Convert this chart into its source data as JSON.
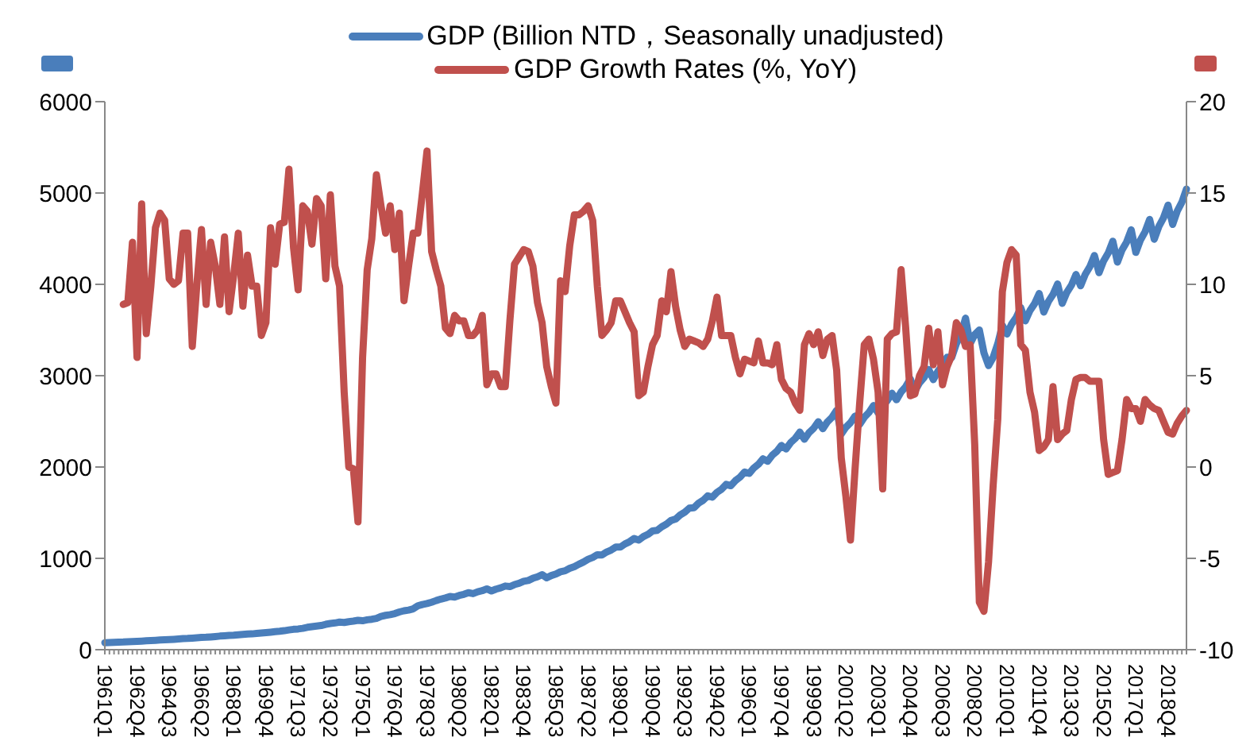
{
  "chart_data": {
    "type": "line",
    "categories": [
      "1961Q1",
      null,
      null,
      null,
      null,
      null,
      null,
      "1962Q4",
      null,
      null,
      null,
      null,
      null,
      null,
      "1964Q3",
      null,
      null,
      null,
      null,
      null,
      null,
      "1966Q2",
      null,
      null,
      null,
      null,
      null,
      null,
      "1968Q1",
      null,
      null,
      null,
      null,
      null,
      null,
      "1969Q4",
      null,
      null,
      null,
      null,
      null,
      null,
      "1971Q3",
      null,
      null,
      null,
      null,
      null,
      null,
      "1973Q2",
      null,
      null,
      null,
      null,
      null,
      null,
      "1975Q1",
      null,
      null,
      null,
      null,
      null,
      null,
      "1976Q4",
      null,
      null,
      null,
      null,
      null,
      null,
      "1978Q3",
      null,
      null,
      null,
      null,
      null,
      null,
      "1980Q2",
      null,
      null,
      null,
      null,
      null,
      null,
      "1982Q1",
      null,
      null,
      null,
      null,
      null,
      null,
      "1983Q4",
      null,
      null,
      null,
      null,
      null,
      null,
      "1985Q3",
      null,
      null,
      null,
      null,
      null,
      null,
      "1987Q2",
      null,
      null,
      null,
      null,
      null,
      null,
      "1989Q1",
      null,
      null,
      null,
      null,
      null,
      null,
      "1990Q4",
      null,
      null,
      null,
      null,
      null,
      null,
      "1992Q3",
      null,
      null,
      null,
      null,
      null,
      null,
      "1994Q2",
      null,
      null,
      null,
      null,
      null,
      null,
      "1996Q1",
      null,
      null,
      null,
      null,
      null,
      null,
      "1997Q4",
      null,
      null,
      null,
      null,
      null,
      null,
      "1999Q3",
      null,
      null,
      null,
      null,
      null,
      null,
      "2001Q2",
      null,
      null,
      null,
      null,
      null,
      null,
      "2003Q1",
      null,
      null,
      null,
      null,
      null,
      null,
      "2004Q4",
      null,
      null,
      null,
      null,
      null,
      null,
      "2006Q3",
      null,
      null,
      null,
      null,
      null,
      null,
      "2008Q2",
      null,
      null,
      null,
      null,
      null,
      null,
      "2010Q1",
      null,
      null,
      null,
      null,
      null,
      null,
      "2011Q4",
      null,
      null,
      null,
      null,
      null,
      null,
      "2013Q3",
      null,
      null,
      null,
      null,
      null,
      null,
      "2015Q2",
      null,
      null,
      null,
      null,
      null,
      null,
      "2017Q1",
      null,
      null,
      null,
      null,
      null,
      null,
      "2018Q4",
      null,
      null,
      null,
      null
    ],
    "series": [
      {
        "name": "GDP (Billion NTD，Seasonally unadjusted)",
        "color": "#4a7ebb",
        "values": [
          77,
          79,
          81,
          83,
          84,
          87,
          89,
          92,
          94,
          97,
          99,
          102,
          106,
          109,
          111,
          114,
          117,
          121,
          123,
          127,
          130,
          134,
          136,
          140,
          144,
          149,
          152,
          156,
          158,
          163,
          167,
          172,
          173,
          178,
          182,
          187,
          192,
          198,
          202,
          208,
          216,
          223,
          227,
          234,
          245,
          252,
          258,
          265,
          278,
          287,
          293,
          302,
          298,
          307,
          313,
          322,
          317,
          327,
          333,
          343,
          365,
          376,
          384,
          395,
          413,
          426,
          434,
          447,
          480,
          495,
          505,
          520,
          538,
          554,
          566,
          582,
          576,
          594,
          606,
          624,
          614,
          634,
          646,
          666,
          643,
          663,
          677,
          697,
          691,
          713,
          727,
          749,
          758,
          782,
          798,
          822,
          787,
          812,
          828,
          853,
          864,
          891,
          909,
          936,
          960,
          990,
          1010,
          1040,
          1037,
          1069,
          1091,
          1123,
          1123,
          1158,
          1182,
          1217,
          1200,
          1238,
          1263,
          1300,
          1306,
          1346,
          1374,
          1414,
          1430,
          1475,
          1505,
          1550,
          1555,
          1604,
          1636,
          1685,
          1670,
          1723,
          1757,
          1810,
          1795,
          1851,
          1889,
          1945,
          1930,
          1990,
          2030,
          2090,
          2064,
          2129,
          2172,
          2236,
          2198,
          2267,
          2313,
          2382,
          2304,
          2376,
          2424,
          2496,
          2419,
          2495,
          2545,
          2621,
          2362,
          2435,
          2485,
          2558,
          2467,
          2544,
          2596,
          2673,
          2592,
          2673,
          2727,
          2808,
          2736,
          2822,
          2879,
          2964,
          2832,
          2921,
          2980,
          3068,
          2957,
          3049,
          3111,
          3203,
          3200,
          3350,
          3450,
          3630,
          3350,
          3450,
          3500,
          3250,
          3110,
          3200,
          3350,
          3550,
          3456,
          3564,
          3636,
          3744,
          3600,
          3713,
          3788,
          3900,
          3696,
          3812,
          3889,
          4004,
          3792,
          3911,
          3990,
          4108,
          3984,
          4109,
          4192,
          4316,
          4128,
          4257,
          4343,
          4472,
          4243,
          4376,
          4464,
          4597,
          4349,
          4485,
          4575,
          4711,
          4493,
          4633,
          4727,
          4867,
          4656,
          4802,
          4899,
          5044
        ]
      },
      {
        "name": "GDP Growth Rates (%, YoY)",
        "color": "#c0504d",
        "axis": "y2",
        "values": [
          null,
          null,
          null,
          null,
          8.9,
          9.0,
          12.3,
          6.0,
          14.4,
          7.3,
          9.9,
          13.1,
          13.9,
          13.5,
          10.3,
          10.0,
          10.2,
          12.8,
          12.8,
          6.6,
          10.0,
          13.0,
          8.9,
          12.3,
          11.0,
          8.9,
          12.6,
          8.5,
          10.5,
          12.8,
          8.8,
          11.6,
          9.9,
          9.9,
          7.2,
          7.9,
          13.1,
          11.1,
          13.3,
          13.4,
          16.3,
          12.0,
          9.7,
          14.3,
          14.0,
          12.2,
          14.7,
          14.3,
          10.3,
          14.9,
          11.0,
          9.9,
          4.1,
          0.0,
          -0.1,
          -3.0,
          6.0,
          10.8,
          12.5,
          16.0,
          14.3,
          12.8,
          14.3,
          11.9,
          13.9,
          9.1,
          11.0,
          12.8,
          12.8,
          15.0,
          17.3,
          11.8,
          10.8,
          9.9,
          7.6,
          7.3,
          8.3,
          8.0,
          8.0,
          7.2,
          7.2,
          7.5,
          8.3,
          4.5,
          5.1,
          5.1,
          4.4,
          4.4,
          8.0,
          11.1,
          11.5,
          11.9,
          11.8,
          11.0,
          9.0,
          7.9,
          5.5,
          4.4,
          3.5,
          10.2,
          9.6,
          12.1,
          13.8,
          13.8,
          14.0,
          14.3,
          13.5,
          9.9,
          7.2,
          7.5,
          7.9,
          9.1,
          9.1,
          8.5,
          7.9,
          7.4,
          3.9,
          4.1,
          5.5,
          6.7,
          7.2,
          9.1,
          8.5,
          10.7,
          8.8,
          7.5,
          6.6,
          7.0,
          6.9,
          6.8,
          6.6,
          7.0,
          8.0,
          9.3,
          7.2,
          7.2,
          7.2,
          6.0,
          5.1,
          5.9,
          5.8,
          5.7,
          6.9,
          5.7,
          5.7,
          5.6,
          6.7,
          4.8,
          4.3,
          4.1,
          3.5,
          3.1,
          6.7,
          7.3,
          6.7,
          7.4,
          6.1,
          7.0,
          7.2,
          5.3,
          0.5,
          -1.6,
          -4.0,
          -0.1,
          3.5,
          6.7,
          7.0,
          5.9,
          4.1,
          -1.2,
          7.0,
          7.3,
          7.4,
          10.8,
          7.6,
          3.9,
          4.0,
          5.0,
          5.5,
          7.6,
          5.6,
          7.4,
          4.5,
          5.5,
          6.1,
          7.9,
          7.5,
          6.6,
          6.7,
          1.2,
          -7.4,
          -7.9,
          -5.2,
          -1.0,
          2.6,
          9.6,
          11.2,
          11.9,
          11.6,
          6.7,
          6.4,
          4.1,
          3.0,
          0.9,
          1.1,
          1.5,
          4.4,
          1.5,
          1.8,
          2.0,
          3.7,
          4.8,
          4.9,
          4.9,
          4.7,
          4.7,
          4.7,
          1.5,
          -0.4,
          -0.3,
          -0.2,
          1.5,
          3.7,
          3.2,
          3.2,
          2.5,
          3.7,
          3.4,
          3.2,
          3.1,
          2.5,
          1.9,
          1.8,
          2.4,
          2.8,
          3.1
        ]
      }
    ],
    "ylim": [
      0,
      6000
    ],
    "yticks": [
      0,
      1000,
      2000,
      3000,
      4000,
      5000,
      6000
    ],
    "y2lim": [
      -10,
      20
    ],
    "y2ticks": [
      -10,
      -5,
      0,
      5,
      10,
      15,
      20
    ],
    "legend": "top"
  }
}
